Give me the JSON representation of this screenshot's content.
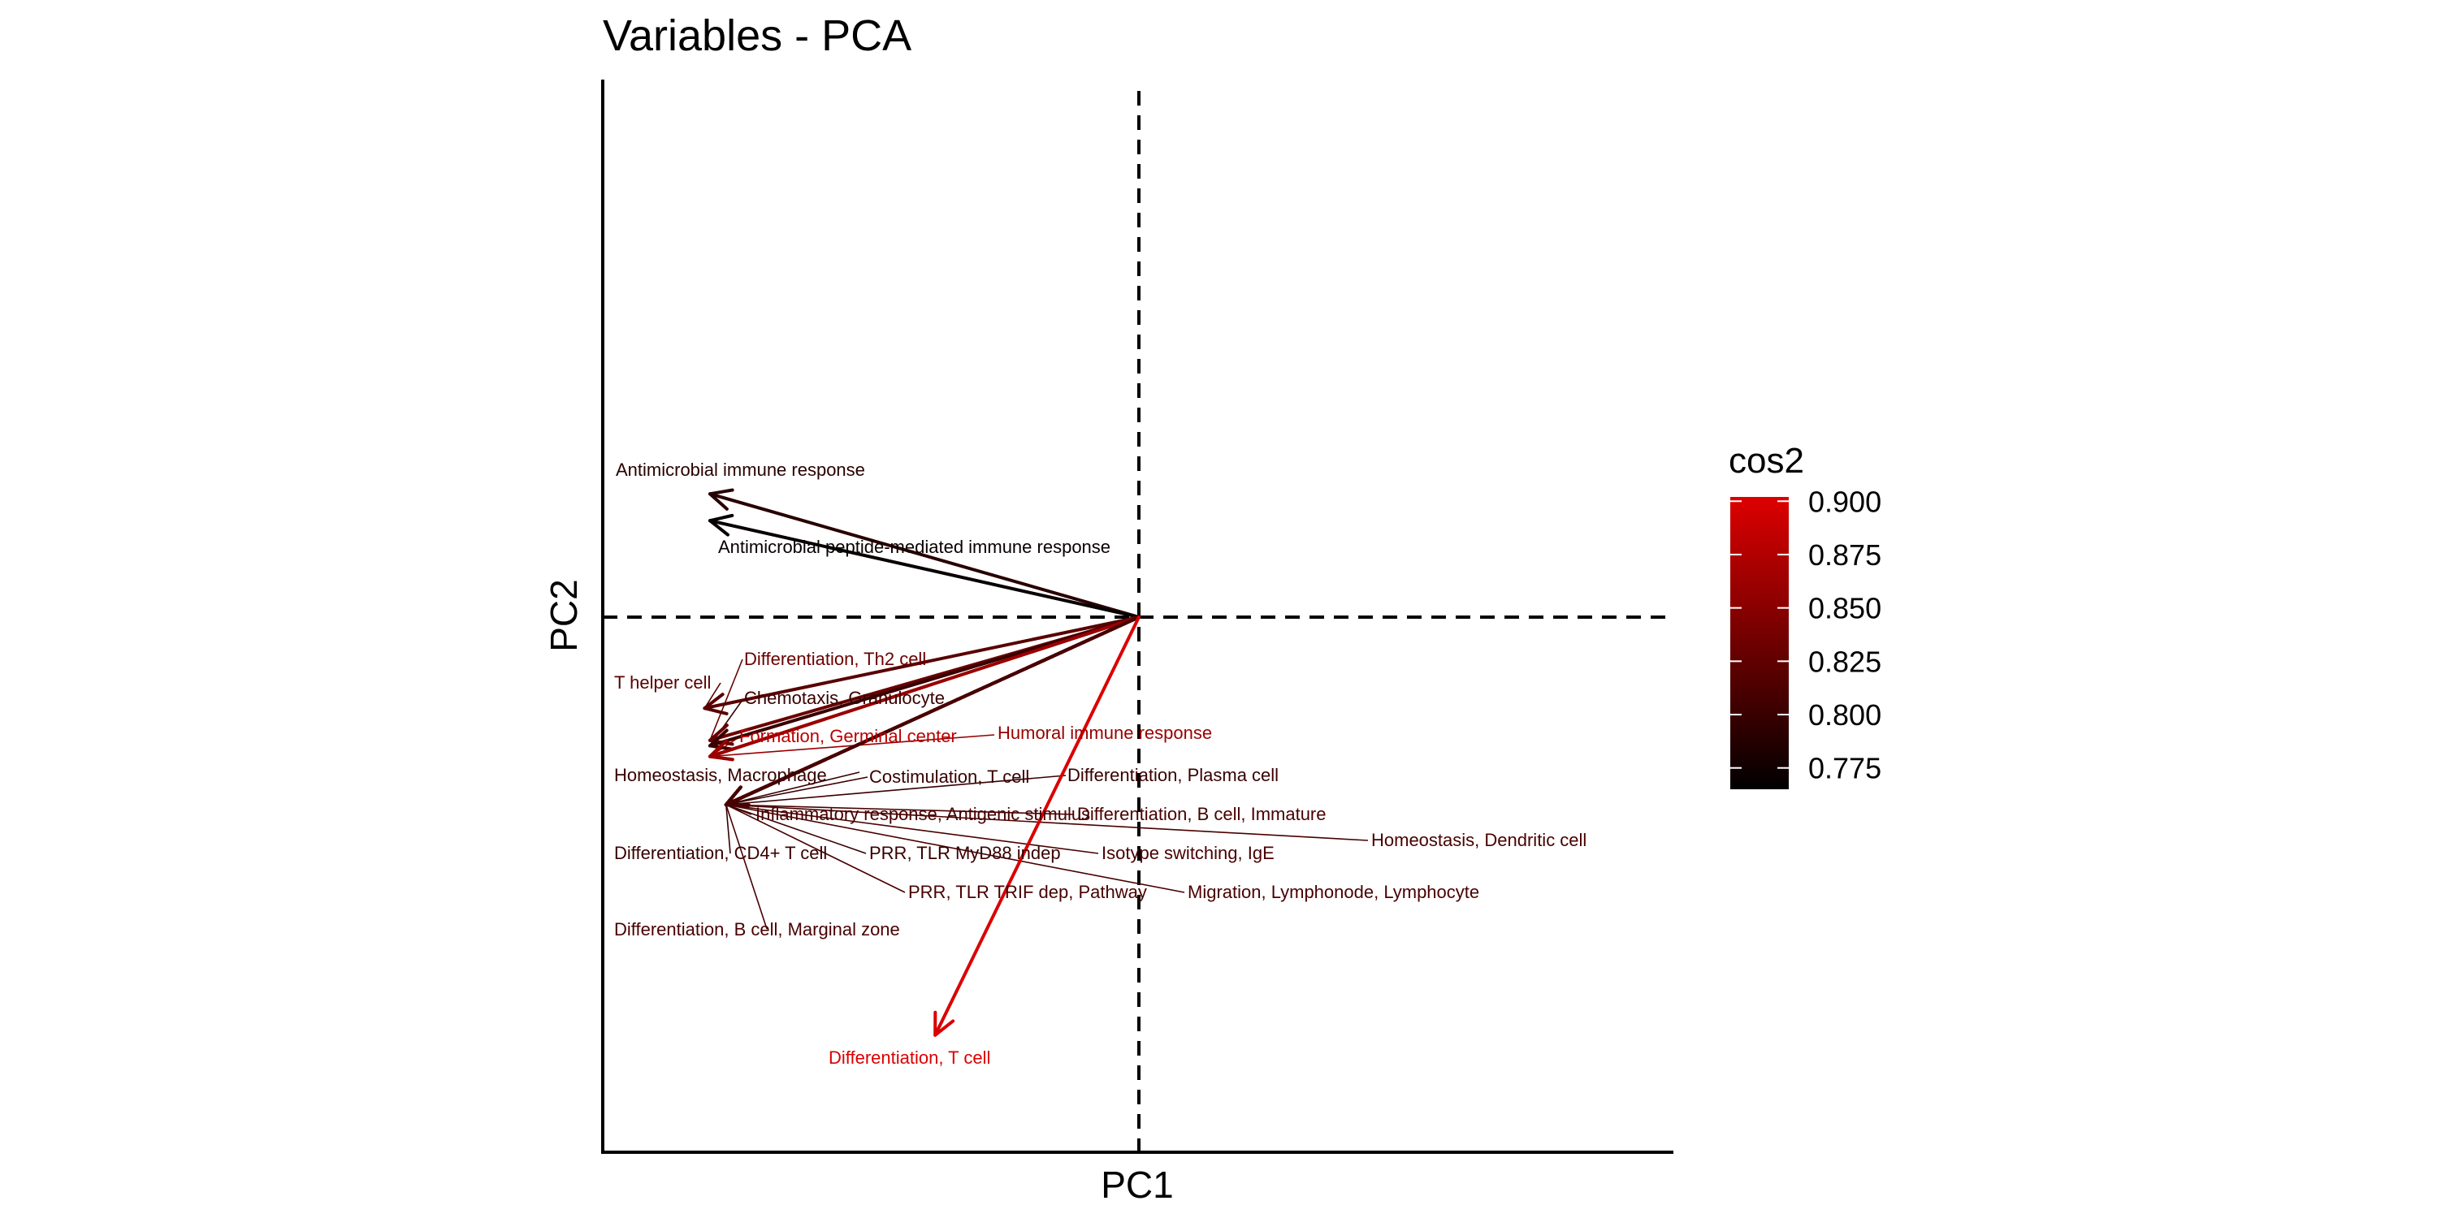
{
  "chart_data": {
    "type": "scatter",
    "subtype": "pca-variable-correlation-arrows",
    "title": "Variables - PCA",
    "xlabel": "PC1",
    "ylabel": "PC2",
    "xlim": [
      -1.0,
      1.0
    ],
    "ylim": [
      -1.0,
      1.0
    ],
    "reference_lines": {
      "x": 0,
      "y": 0,
      "style": "dashed"
    },
    "grid": false,
    "legend": {
      "title": "cos2",
      "position": "right",
      "type": "continuous-colorbar",
      "range": [
        0.765,
        0.902
      ],
      "ticks": [
        "0.775",
        "0.800",
        "0.825",
        "0.850",
        "0.875",
        "0.900"
      ],
      "colors": {
        "low": "#000000",
        "high": "#dd0000"
      }
    },
    "variables": [
      {
        "name": "Antimicrobial immune response",
        "x": -0.8,
        "y": 0.23,
        "cos2": 0.79
      },
      {
        "name": "Antimicrobial peptide-mediated immune response",
        "x": -0.8,
        "y": 0.18,
        "cos2": 0.77
      },
      {
        "name": "Differentiation, Th2 cell",
        "x": -0.8,
        "y": -0.23,
        "cos2": 0.83
      },
      {
        "name": "T helper cell",
        "x": -0.81,
        "y": -0.17,
        "cos2": 0.82
      },
      {
        "name": "Chemotaxis, Granulocyte",
        "x": -0.8,
        "y": -0.24,
        "cos2": 0.8
      },
      {
        "name": "Formation, Germinal center",
        "x": -0.8,
        "y": -0.26,
        "cos2": 0.88
      },
      {
        "name": "Humoral immune response",
        "x": -0.8,
        "y": -0.26,
        "cos2": 0.86
      },
      {
        "name": "Homeostasis, Macrophage",
        "x": -0.77,
        "y": -0.35,
        "cos2": 0.8
      },
      {
        "name": "Costimulation, T cell",
        "x": -0.77,
        "y": -0.35,
        "cos2": 0.8
      },
      {
        "name": "Differentiation, Plasma cell",
        "x": -0.77,
        "y": -0.35,
        "cos2": 0.8
      },
      {
        "name": "Inflammatory response, Antigenic stimulus",
        "x": -0.77,
        "y": -0.35,
        "cos2": 0.81
      },
      {
        "name": "Differentiation, B cell, Immature",
        "x": -0.77,
        "y": -0.35,
        "cos2": 0.81
      },
      {
        "name": "Homeostasis, Dendritic cell",
        "x": -0.77,
        "y": -0.35,
        "cos2": 0.81
      },
      {
        "name": "Differentiation, CD4+ T cell",
        "x": -0.77,
        "y": -0.35,
        "cos2": 0.8
      },
      {
        "name": "PRR, TLR MyD88 indep",
        "x": -0.77,
        "y": -0.35,
        "cos2": 0.8
      },
      {
        "name": "Isotype switching, IgE",
        "x": -0.77,
        "y": -0.35,
        "cos2": 0.81
      },
      {
        "name": "PRR, TLR TRIF dep, Pathway",
        "x": -0.77,
        "y": -0.35,
        "cos2": 0.81
      },
      {
        "name": "Migration, Lymphonode, Lymphocyte",
        "x": -0.77,
        "y": -0.35,
        "cos2": 0.81
      },
      {
        "name": "Differentiation, B cell, Marginal zone",
        "x": -0.77,
        "y": -0.35,
        "cos2": 0.81
      },
      {
        "name": "Differentiation, T cell",
        "x": -0.38,
        "y": -0.78,
        "cos2": 0.9
      }
    ]
  }
}
